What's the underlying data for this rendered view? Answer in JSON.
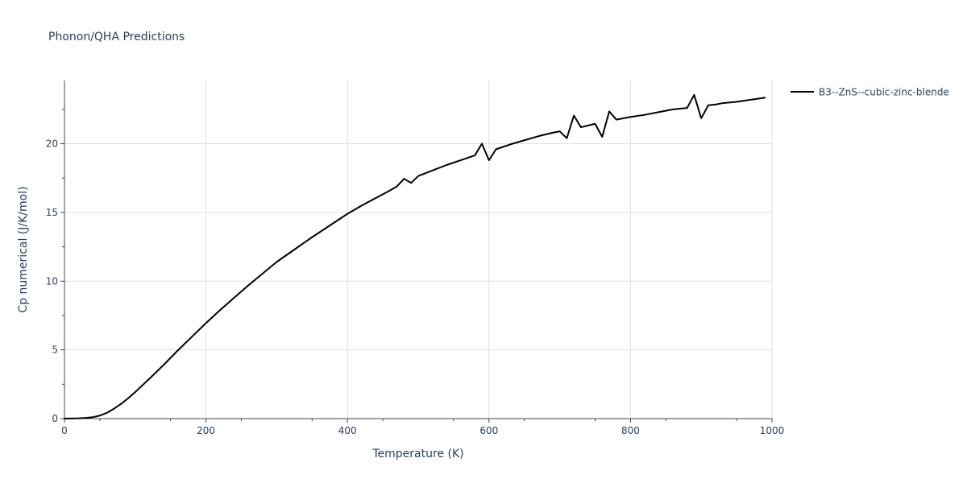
{
  "chart_data": {
    "type": "line",
    "title": "Phonon/QHA Predictions",
    "xlabel": "Temperature (K)",
    "ylabel": "Cp numerical (J/K/mol)",
    "xlim": [
      0,
      1000
    ],
    "ylim": [
      0,
      24.6
    ],
    "x_ticks": [
      0,
      200,
      400,
      600,
      800,
      1000
    ],
    "y_ticks": [
      0,
      5,
      10,
      15,
      20
    ],
    "grid": true,
    "legend_position": "top-right",
    "series": [
      {
        "name": "B3--ZnS--cubic-zinc-blende",
        "color": "#000000",
        "points": [
          [
            0,
            0
          ],
          [
            10,
            0.01
          ],
          [
            20,
            0.02
          ],
          [
            30,
            0.05
          ],
          [
            40,
            0.1
          ],
          [
            50,
            0.22
          ],
          [
            60,
            0.42
          ],
          [
            70,
            0.72
          ],
          [
            80,
            1.07
          ],
          [
            90,
            1.48
          ],
          [
            100,
            1.93
          ],
          [
            120,
            2.9
          ],
          [
            140,
            3.9
          ],
          [
            160,
            4.95
          ],
          [
            180,
            5.95
          ],
          [
            200,
            6.95
          ],
          [
            220,
            7.9
          ],
          [
            240,
            8.8
          ],
          [
            260,
            9.7
          ],
          [
            280,
            10.55
          ],
          [
            300,
            11.4
          ],
          [
            325,
            12.3
          ],
          [
            350,
            13.2
          ],
          [
            375,
            14.05
          ],
          [
            400,
            14.9
          ],
          [
            420,
            15.5
          ],
          [
            440,
            16.05
          ],
          [
            460,
            16.6
          ],
          [
            470,
            16.9
          ],
          [
            480,
            17.45
          ],
          [
            490,
            17.15
          ],
          [
            500,
            17.65
          ],
          [
            520,
            18.05
          ],
          [
            540,
            18.45
          ],
          [
            560,
            18.8
          ],
          [
            580,
            19.15
          ],
          [
            590,
            20.0
          ],
          [
            600,
            18.8
          ],
          [
            610,
            19.6
          ],
          [
            630,
            19.95
          ],
          [
            650,
            20.25
          ],
          [
            670,
            20.55
          ],
          [
            690,
            20.8
          ],
          [
            700,
            20.9
          ],
          [
            710,
            20.4
          ],
          [
            720,
            22.05
          ],
          [
            730,
            21.2
          ],
          [
            750,
            21.45
          ],
          [
            760,
            20.5
          ],
          [
            770,
            22.35
          ],
          [
            780,
            21.75
          ],
          [
            800,
            21.95
          ],
          [
            820,
            22.1
          ],
          [
            840,
            22.3
          ],
          [
            860,
            22.5
          ],
          [
            880,
            22.6
          ],
          [
            890,
            23.55
          ],
          [
            900,
            21.85
          ],
          [
            910,
            22.8
          ],
          [
            920,
            22.85
          ],
          [
            930,
            22.95
          ],
          [
            950,
            23.05
          ],
          [
            970,
            23.2
          ],
          [
            990,
            23.35
          ]
        ]
      }
    ]
  }
}
